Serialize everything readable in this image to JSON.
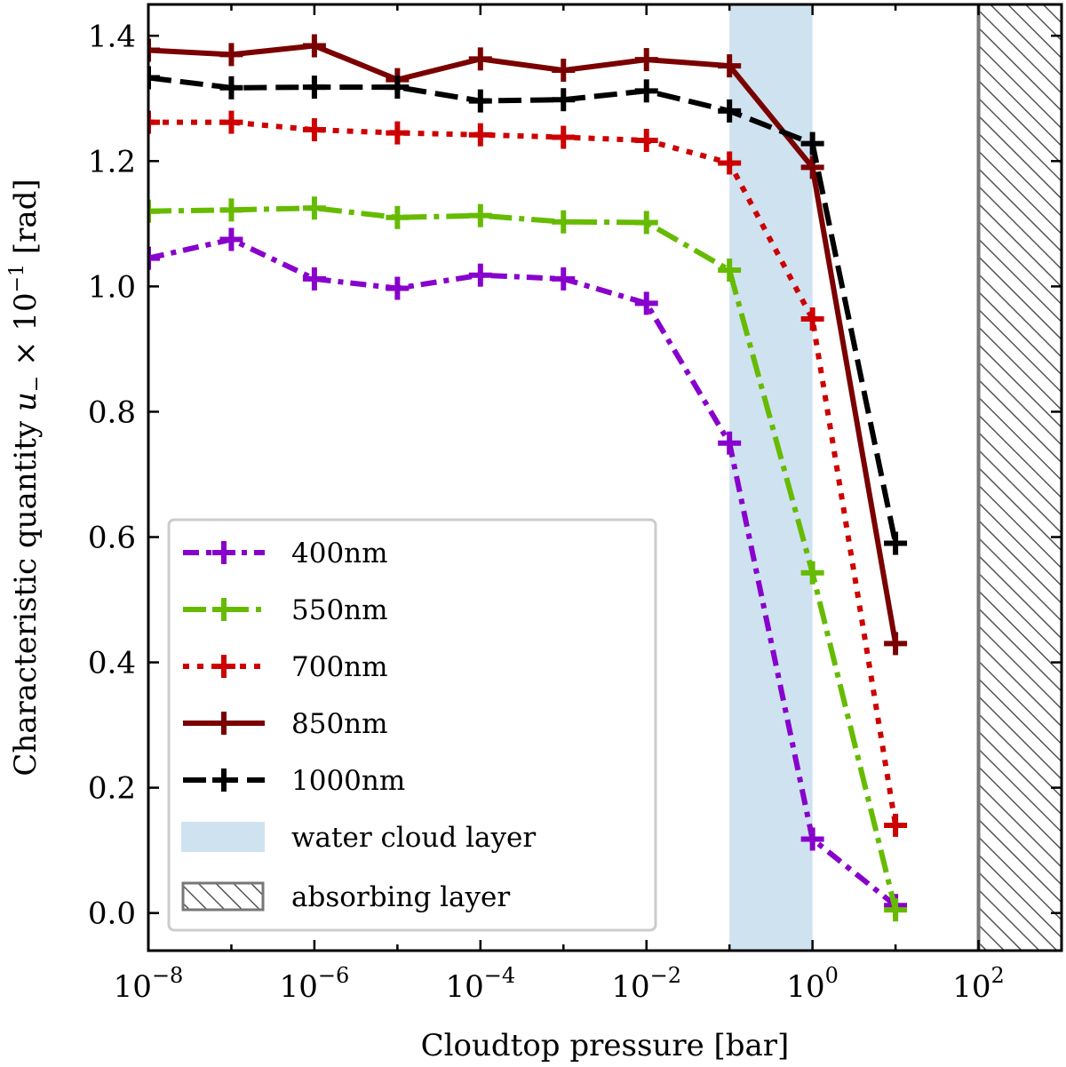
{
  "chart_data": {
    "type": "line",
    "xscale": "log",
    "xlabel": "Cloudtop pressure [bar]",
    "ylabel_prefix": "Characteristic quantity ",
    "ylabel_var": "u",
    "ylabel_sub": "−",
    "ylabel_mid": " × 10",
    "ylabel_exp": "−1",
    "ylabel_suffix": " [rad]",
    "xlim_exp": [
      -8,
      3
    ],
    "ylim": [
      -0.06,
      1.45
    ],
    "x_ticks": [
      {
        "base": "10",
        "exp": "−8",
        "value_exp": -8
      },
      {
        "base": "10",
        "exp": "−6",
        "value_exp": -6
      },
      {
        "base": "10",
        "exp": "−4",
        "value_exp": -4
      },
      {
        "base": "10",
        "exp": "−2",
        "value_exp": -2
      },
      {
        "base": "10",
        "exp": "0",
        "value_exp": 0
      },
      {
        "base": "10",
        "exp": "2",
        "value_exp": 2
      }
    ],
    "y_ticks": [
      {
        "label": "0.0",
        "value": 0.0
      },
      {
        "label": "0.2",
        "value": 0.2
      },
      {
        "label": "0.4",
        "value": 0.4
      },
      {
        "label": "0.6",
        "value": 0.6
      },
      {
        "label": "0.8",
        "value": 0.8
      },
      {
        "label": "1.0",
        "value": 1.0
      },
      {
        "label": "1.2",
        "value": 1.2
      },
      {
        "label": "1.4",
        "value": 1.4
      }
    ],
    "x_exponents": [
      -8,
      -7,
      -6,
      -5,
      -4,
      -3,
      -2,
      -1,
      0,
      1
    ],
    "series": [
      {
        "name": "400nm",
        "color": "#8800cc",
        "dash": "dashdot",
        "values": [
          1.045,
          1.075,
          1.012,
          0.997,
          1.018,
          1.012,
          0.973,
          0.75,
          0.118,
          0.012
        ]
      },
      {
        "name": "550nm",
        "color": "#66bb00",
        "dash": "dashdot2",
        "values": [
          1.12,
          1.122,
          1.125,
          1.11,
          1.113,
          1.103,
          1.102,
          1.026,
          0.543,
          0.005
        ]
      },
      {
        "name": "700nm",
        "color": "#cc0000",
        "dash": "dotted",
        "values": [
          1.262,
          1.262,
          1.25,
          1.245,
          1.242,
          1.238,
          1.233,
          1.197,
          0.948,
          0.14
        ]
      },
      {
        "name": "850nm",
        "color": "#7a0000",
        "dash": "solid",
        "values": [
          1.377,
          1.37,
          1.384,
          1.33,
          1.363,
          1.345,
          1.362,
          1.352,
          1.19,
          0.43
        ]
      },
      {
        "name": "1000nm",
        "color": "#000000",
        "dash": "dashed",
        "values": [
          1.333,
          1.317,
          1.318,
          1.318,
          1.296,
          1.298,
          1.312,
          1.28,
          1.228,
          0.59
        ]
      }
    ],
    "water_cloud": {
      "label": "water cloud layer",
      "from_exp": -1,
      "to_exp": 0,
      "color": "#cfe2f0"
    },
    "absorbing": {
      "label": "absorbing layer",
      "from_exp": 2,
      "to_exp": 3,
      "color": "#777777"
    },
    "legend_position": "lower-left"
  }
}
